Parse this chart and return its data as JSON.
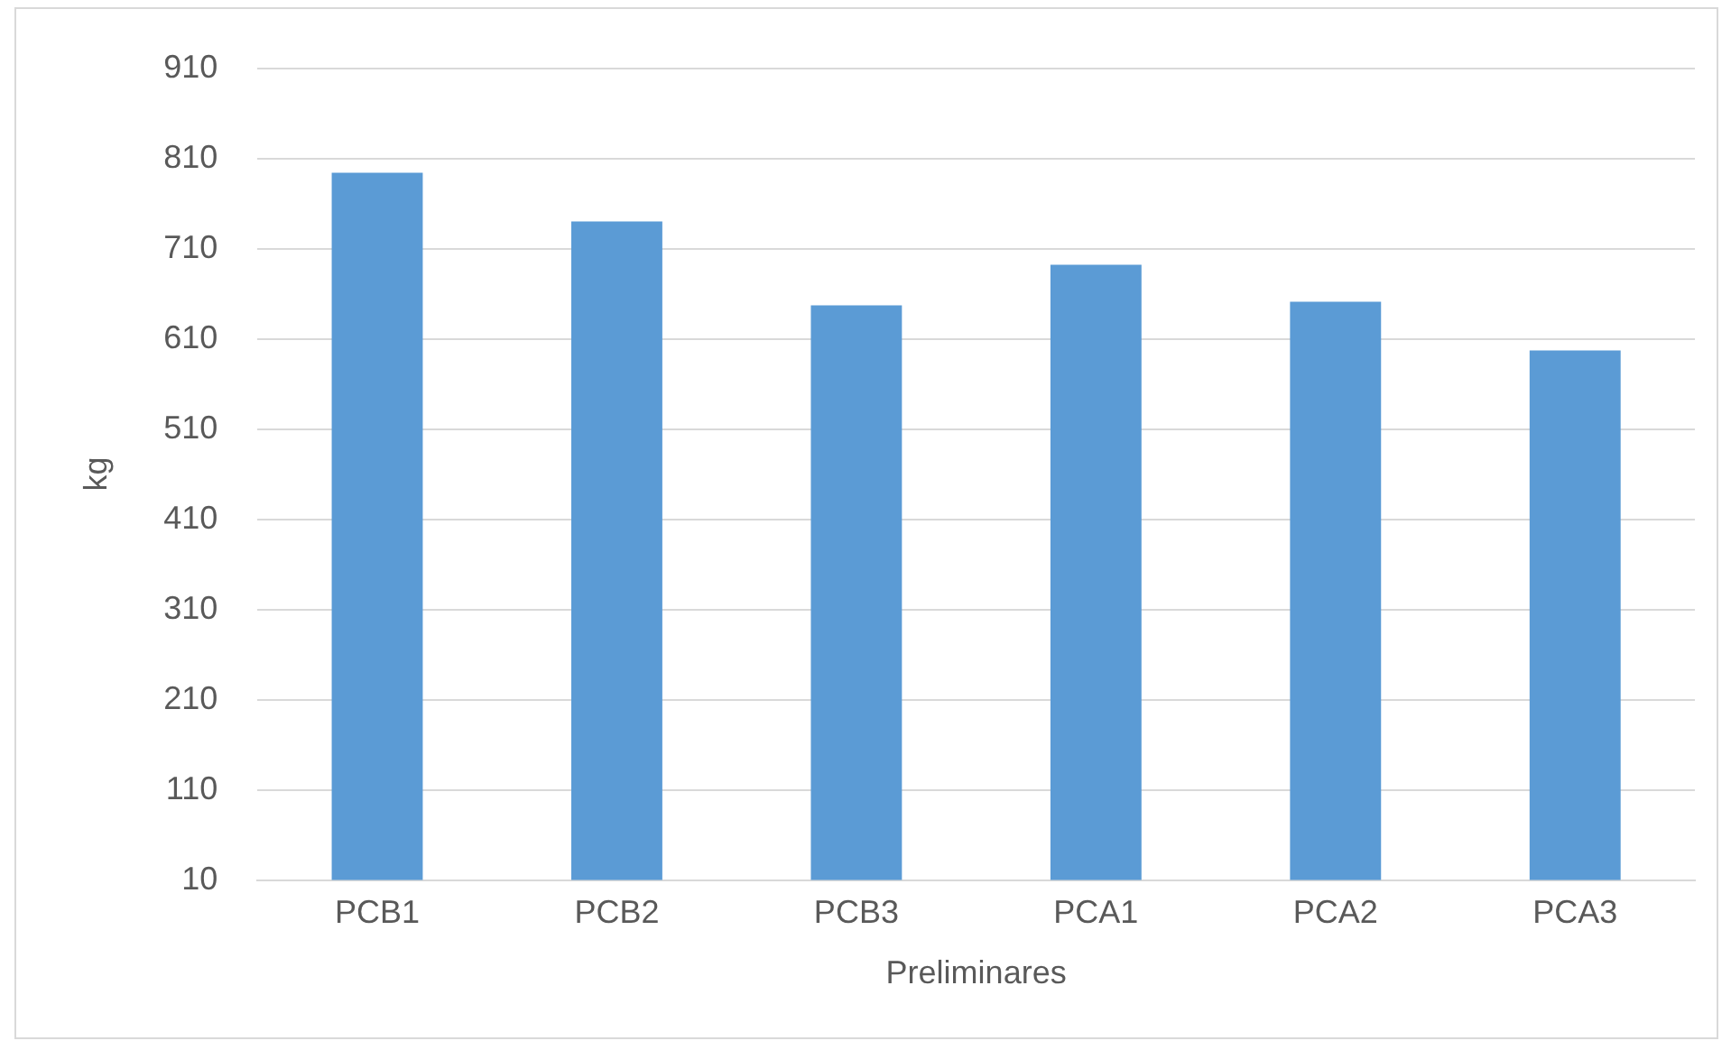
{
  "chart_data": {
    "type": "bar",
    "xlabel": "Preliminares",
    "ylabel": "kg",
    "categories": [
      "PCB1",
      "PCB2",
      "PCB3",
      "PCA1",
      "PCA2",
      "PCA3"
    ],
    "values": [
      794,
      740,
      647,
      692,
      651,
      597
    ],
    "color": "#5b9bd5",
    "ylim": [
      10,
      910
    ],
    "yticks": [
      10,
      110,
      210,
      310,
      410,
      510,
      610,
      710,
      810,
      910
    ],
    "grid": "y",
    "legend": false
  }
}
